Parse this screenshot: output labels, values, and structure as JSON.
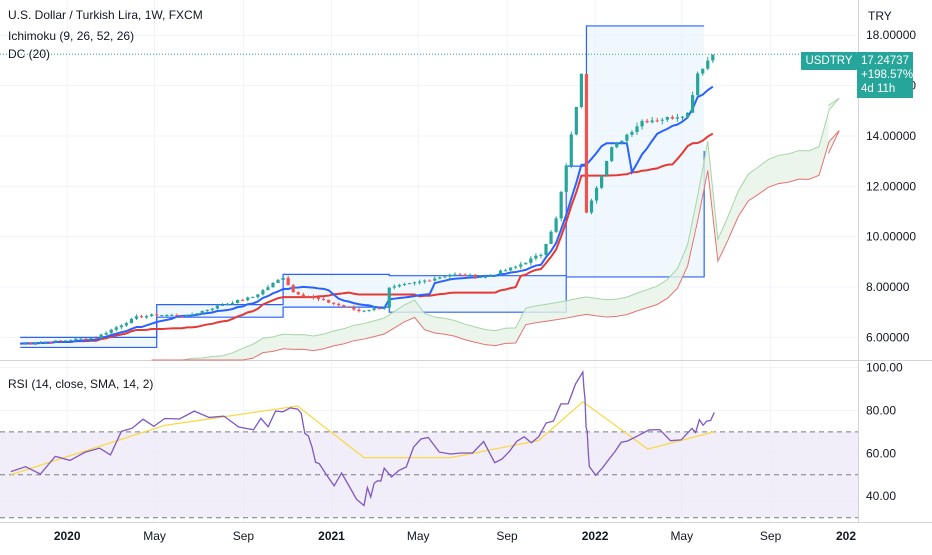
{
  "header": {
    "symbol_title": "U.S. Dollar / Turkish Lira, 1W, FXCM",
    "indicator_1": "Ichimoku (9, 26, 52, 26)",
    "indicator_2": "DC (20)"
  },
  "price_axis": {
    "unit": "TRY",
    "ticks": [
      "18.00000",
      "16.00000",
      "14.00000",
      "12.00000",
      "10.00000",
      "8.00000",
      "6.00000"
    ],
    "tick_values": [
      18,
      16,
      14,
      12,
      10,
      8,
      6
    ],
    "range": [
      5.1,
      19.4
    ]
  },
  "last_price": {
    "symbol": "USDTRY",
    "price": "17.24737",
    "change": "+198.57%",
    "countdown": "4d 11h"
  },
  "rsi_panel": {
    "label": "RSI (14, close, SMA, 14, 2)",
    "ticks": [
      "100.00",
      "80.00",
      "60.00",
      "40.00"
    ],
    "tick_values": [
      100,
      80,
      60,
      40
    ],
    "range": [
      28,
      103
    ],
    "bands": [
      70,
      50,
      30
    ]
  },
  "time_axis": {
    "labels": [
      "2020",
      "May",
      "Sep",
      "2021",
      "May",
      "Sep",
      "2022",
      "May",
      "Sep",
      "202"
    ],
    "bold": [
      true,
      false,
      false,
      true,
      false,
      false,
      true,
      false,
      false,
      true
    ]
  },
  "colors": {
    "up": "#26a69a",
    "down": "#ef5350",
    "tenkan": "#2962ff",
    "kijun": "#e53935",
    "donchian": "#2962ff",
    "cloud_fill": "#e6f2e6",
    "senkou_a": "#a5d6a7",
    "senkou_b": "#e57373",
    "dc_fill": "#e3f2fd",
    "rsi": "#7e57c2",
    "rsi_ma": "#f9d949",
    "rsi_band": "#ede7f6"
  },
  "chart_data": [
    {
      "type": "line",
      "title": "U.S. Dollar / Turkish Lira, 1W, FXCM",
      "x_range": [
        "2019-10",
        "2022-12"
      ],
      "ylim": [
        5.1,
        19.4
      ],
      "log_scale": false,
      "series": [
        {
          "name": "USDTRY",
          "x": [
            "2019-10-28",
            "2019-12-16",
            "2020-02-10",
            "2020-04-06",
            "2020-05-04",
            "2020-06-15",
            "2020-08-03",
            "2020-09-14",
            "2020-10-26",
            "2020-11-09",
            "2020-12-21",
            "2021-02-08",
            "2021-03-15",
            "2021-03-22",
            "2021-05-03",
            "2021-06-14",
            "2021-08-02",
            "2021-09-13",
            "2021-10-18",
            "2021-11-08",
            "2021-11-22",
            "2021-12-13",
            "2021-12-20",
            "2022-01-24",
            "2022-03-07",
            "2022-04-11",
            "2022-05-09",
            "2022-05-23",
            "2022-06-13"
          ],
          "y": [
            5.75,
            5.85,
            6.0,
            6.8,
            6.9,
            6.85,
            7.3,
            7.6,
            8.4,
            7.8,
            7.45,
            7.05,
            7.2,
            7.95,
            8.2,
            8.5,
            8.4,
            8.8,
            9.3,
            10.7,
            12.8,
            16.4,
            11.0,
            13.5,
            14.6,
            14.7,
            14.9,
            16.5,
            17.25
          ]
        }
      ],
      "donchian_channel": {
        "x": [
          "2019-10-28",
          "2020-05-04",
          "2020-10-26",
          "2021-03-22",
          "2021-11-22",
          "2021-12-20",
          "2022-06-01"
        ],
        "upper": [
          6.0,
          7.3,
          8.5,
          8.45,
          12.8,
          18.37,
          18.37
        ],
        "lower": [
          5.6,
          6.8,
          7.2,
          7.0,
          8.4,
          8.4,
          13.4
        ]
      },
      "ichimoku": {
        "tenkan_end": 16.0,
        "kijun_end": 14.2,
        "senkou_a_end": 15.2,
        "senkou_b_end": 13.3
      }
    },
    {
      "type": "line",
      "title": "RSI (14, close, SMA, 14, 2)",
      "ylim": [
        28,
        103
      ],
      "bands": [
        70,
        50,
        30
      ],
      "series": [
        {
          "name": "RSI",
          "x": [
            "2019-10",
            "2020-02",
            "2020-05",
            "2020-09",
            "2020-11",
            "2020-12",
            "2021-02",
            "2021-03",
            "2021-05",
            "2021-08",
            "2021-10",
            "2021-12",
            "2021-12b",
            "2022-02",
            "2022-05",
            "2022-06"
          ],
          "y": [
            52,
            60,
            78,
            72,
            82,
            55,
            38,
            50,
            66,
            60,
            70,
            96,
            52,
            65,
            70,
            79
          ]
        },
        {
          "name": "RSI-based MA",
          "x": [
            "2019-10",
            "2020-05",
            "2020-11",
            "2021-02",
            "2021-06",
            "2021-10",
            "2021-12",
            "2022-03",
            "2022-06"
          ],
          "y": [
            50,
            73,
            82,
            58,
            58,
            66,
            84,
            62,
            70
          ]
        }
      ]
    }
  ]
}
